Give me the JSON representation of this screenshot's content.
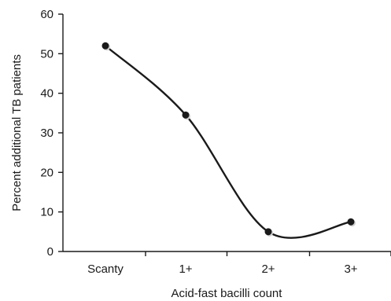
{
  "chart_data": {
    "type": "line",
    "title": "",
    "xlabel": "Acid-fast bacilli count",
    "ylabel": "Percent additional TB patients",
    "categories": [
      "Scanty",
      "1+",
      "2+",
      "3+"
    ],
    "series": [
      {
        "values": [
          52,
          34.5,
          5,
          7.5
        ]
      }
    ],
    "ylim": [
      0,
      60
    ],
    "yticks": [
      "0",
      "10",
      "20",
      "30",
      "40",
      "50",
      "60"
    ],
    "smooth": true,
    "grid": false,
    "legend": "none",
    "colors": {
      "line": "#1a1a1a",
      "marker": "#1a1a1a",
      "axis": "#1a1a1a"
    }
  }
}
